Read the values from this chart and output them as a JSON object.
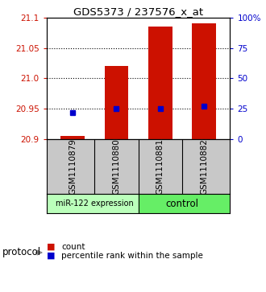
{
  "title": "GDS5373 / 237576_x_at",
  "samples": [
    "GSM1110879",
    "GSM1110880",
    "GSM1110881",
    "GSM1110882"
  ],
  "bar_values": [
    20.905,
    21.02,
    21.085,
    21.09
  ],
  "bar_base": 20.9,
  "percentile_values": [
    22,
    25,
    25,
    27
  ],
  "ylim_left": [
    20.9,
    21.1
  ],
  "ylim_right": [
    0,
    100
  ],
  "yticks_left": [
    20.9,
    20.95,
    21.0,
    21.05,
    21.1
  ],
  "yticks_right": [
    0,
    25,
    50,
    75,
    100
  ],
  "bar_color": "#cc1100",
  "dot_color": "#0000cc",
  "label_color_left": "#cc1100",
  "label_color_right": "#0000cc",
  "group1_label": "miR-122 expression",
  "group2_label": "control",
  "group1_color": "#bbffbb",
  "group2_color": "#66ee66",
  "sample_bg": "#c8c8c8",
  "legend_count_label": "count",
  "legend_pct_label": "percentile rank within the sample",
  "protocol_label": "protocol",
  "grid_dotted_vals": [
    20.95,
    21.0,
    21.05
  ]
}
